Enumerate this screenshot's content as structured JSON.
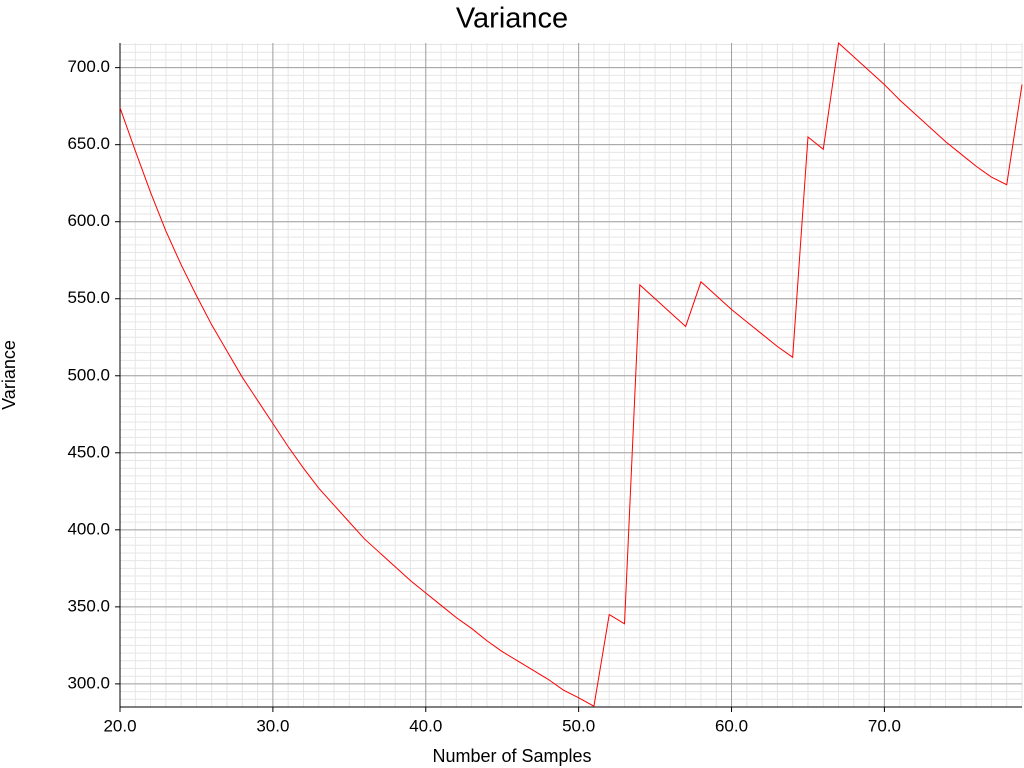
{
  "chart_data": {
    "type": "line",
    "title": "Variance",
    "x_label": "Number of Samples",
    "y_label": "Variance",
    "x": [
      20,
      21,
      22,
      23,
      24,
      25,
      26,
      27,
      28,
      29,
      30,
      31,
      32,
      33,
      34,
      35,
      36,
      37,
      38,
      39,
      40,
      41,
      42,
      43,
      44,
      45,
      46,
      47,
      48,
      49,
      50,
      51,
      52,
      53,
      54,
      55,
      56,
      57,
      58,
      59,
      60,
      61,
      62,
      63,
      64,
      65,
      66,
      67,
      68,
      69,
      70,
      71,
      72,
      73,
      74,
      75,
      76,
      77,
      78,
      79
    ],
    "series": [
      {
        "name": "Variance",
        "color": "#ff0000",
        "values": [
          674,
          646,
          619,
          594,
          572,
          552,
          533,
          516,
          499,
          484,
          469,
          454,
          440,
          427,
          416,
          405,
          394,
          385,
          376,
          367,
          359,
          351,
          343,
          336,
          328,
          321,
          315,
          309,
          303,
          296,
          291,
          285.5,
          345,
          339,
          559,
          550,
          541,
          532,
          561,
          552,
          543,
          535,
          527,
          519,
          512,
          655,
          647,
          716,
          707,
          698,
          689,
          679,
          670,
          661,
          652,
          644,
          636,
          629,
          624,
          689
        ]
      }
    ],
    "xlim": [
      20,
      79
    ],
    "ylim": [
      285,
      716
    ],
    "xticks": [
      {
        "value": 20,
        "label": "20.0"
      },
      {
        "value": 30,
        "label": "30.0"
      },
      {
        "value": 40,
        "label": "40.0"
      },
      {
        "value": 50,
        "label": "50.0"
      },
      {
        "value": 60,
        "label": "60.0"
      },
      {
        "value": 70,
        "label": "70.0"
      }
    ],
    "yticks": [
      {
        "value": 300,
        "label": "300.0"
      },
      {
        "value": 350,
        "label": "350.0"
      },
      {
        "value": 400,
        "label": "400.0"
      },
      {
        "value": 450,
        "label": "450.0"
      },
      {
        "value": 500,
        "label": "500.0"
      },
      {
        "value": 550,
        "label": "550.0"
      },
      {
        "value": 600,
        "label": "600.0"
      },
      {
        "value": 650,
        "label": "650.0"
      },
      {
        "value": 700,
        "label": "700.0"
      }
    ],
    "grid": true,
    "minor_grid": true
  }
}
